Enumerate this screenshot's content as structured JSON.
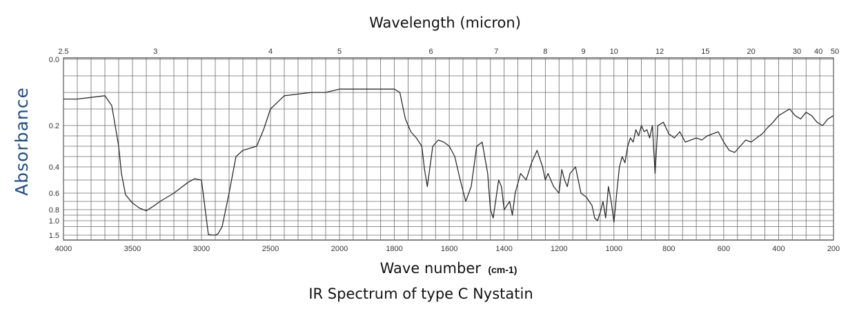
{
  "chart_data": {
    "type": "line",
    "title": "IR Spectrum of type C Nystatin",
    "top_axis_label": "Wavelength (micron)",
    "xlabel": "Wave number",
    "xlabel_unit": "(cm-1)",
    "ylabel": "Absorbance",
    "x_range": [
      4000,
      200
    ],
    "y_scale": "log-transmittance (absorbance)",
    "grid": true,
    "x_ticks": [
      "4000",
      "3500",
      "3000",
      "2500",
      "2000",
      "1800",
      "1600",
      "1400",
      "1200",
      "1000",
      "800",
      "600",
      "400",
      "200"
    ],
    "top_ticks": [
      "2.5",
      "3",
      "4",
      "5",
      "6",
      "7",
      "8",
      "9",
      "10",
      "12",
      "15",
      "20",
      "30",
      "40",
      "50"
    ],
    "y_ticks": [
      "0.0",
      "0.2",
      "0.4",
      "0.6",
      "0.8",
      "1.0",
      "1.5"
    ],
    "series": [
      {
        "x": [
          4000,
          3900,
          3800,
          3700,
          3650,
          3600,
          3580,
          3550,
          3500,
          3450,
          3400,
          3350,
          3300,
          3200,
          3100,
          3050,
          3000,
          2950,
          2900,
          2880,
          2850,
          2800,
          2750,
          2700,
          2600,
          2550,
          2500,
          2400,
          2300,
          2200,
          2100,
          2000,
          1950,
          1900,
          1850,
          1800,
          1780,
          1760,
          1740,
          1720,
          1700,
          1690,
          1680,
          1660,
          1640,
          1620,
          1600,
          1580,
          1560,
          1540,
          1520,
          1500,
          1480,
          1460,
          1450,
          1440,
          1420,
          1410,
          1400,
          1380,
          1370,
          1360,
          1340,
          1320,
          1300,
          1280,
          1260,
          1250,
          1240,
          1220,
          1200,
          1190,
          1180,
          1170,
          1160,
          1140,
          1120,
          1100,
          1080,
          1070,
          1060,
          1050,
          1040,
          1030,
          1020,
          1010,
          1000,
          990,
          980,
          970,
          960,
          950,
          940,
          930,
          920,
          910,
          900,
          890,
          880,
          870,
          860,
          850,
          840,
          820,
          800,
          780,
          760,
          740,
          720,
          700,
          680,
          660,
          640,
          620,
          600,
          580,
          560,
          540,
          520,
          500,
          480,
          460,
          440,
          420,
          400,
          380,
          360,
          340,
          320,
          300,
          280,
          260,
          240,
          220,
          200
        ],
        "y": [
          0.12,
          0.12,
          0.115,
          0.11,
          0.14,
          0.3,
          0.45,
          0.62,
          0.72,
          0.78,
          0.82,
          0.76,
          0.7,
          0.6,
          0.52,
          0.49,
          0.5,
          1.48,
          1.5,
          1.45,
          1.2,
          0.6,
          0.35,
          0.32,
          0.3,
          0.22,
          0.15,
          0.11,
          0.105,
          0.1,
          0.1,
          0.09,
          0.09,
          0.09,
          0.09,
          0.09,
          0.1,
          0.18,
          0.23,
          0.26,
          0.3,
          0.42,
          0.55,
          0.3,
          0.27,
          0.28,
          0.3,
          0.35,
          0.5,
          0.7,
          0.55,
          0.3,
          0.28,
          0.45,
          0.8,
          0.95,
          0.5,
          0.55,
          0.8,
          0.7,
          0.9,
          0.6,
          0.45,
          0.5,
          0.38,
          0.32,
          0.4,
          0.5,
          0.45,
          0.55,
          0.6,
          0.42,
          0.5,
          0.55,
          0.45,
          0.4,
          0.6,
          0.65,
          0.75,
          0.95,
          1.0,
          0.85,
          0.7,
          0.95,
          0.55,
          0.7,
          1.05,
          0.6,
          0.4,
          0.35,
          0.38,
          0.3,
          0.26,
          0.28,
          0.22,
          0.25,
          0.2,
          0.23,
          0.22,
          0.26,
          0.2,
          0.45,
          0.2,
          0.19,
          0.24,
          0.26,
          0.23,
          0.28,
          0.27,
          0.26,
          0.27,
          0.25,
          0.24,
          0.23,
          0.28,
          0.32,
          0.33,
          0.3,
          0.27,
          0.28,
          0.26,
          0.24,
          0.21,
          0.19,
          0.17,
          0.16,
          0.15,
          0.17,
          0.18,
          0.16,
          0.17,
          0.19,
          0.2,
          0.18,
          0.17
        ]
      }
    ]
  }
}
